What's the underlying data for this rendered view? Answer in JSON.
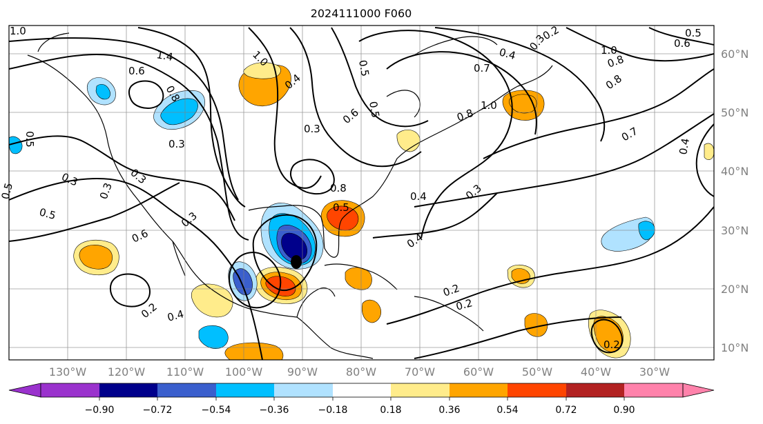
{
  "title": "2024111000 F060",
  "map": {
    "lon_labels": [
      "130°W",
      "120°W",
      "110°W",
      "100°W",
      "90°W",
      "80°W",
      "70°W",
      "60°W",
      "50°W",
      "40°W",
      "30°W"
    ],
    "lat_labels": [
      "60°N",
      "50°N",
      "40°N",
      "30°N",
      "20°N",
      "10°N"
    ],
    "contour_labels": [
      "1.0",
      "1.4",
      "0.6",
      "0.8",
      "0.5",
      "0.3",
      "0.3",
      "0.5",
      "0.3",
      "0.6",
      "0.3",
      "0.5",
      "0.2",
      "0.4",
      "1.0",
      "0.4",
      "0.3",
      "0.5",
      "0.8",
      "0.6",
      "0.5",
      "0.3",
      "0.5",
      "0.4",
      "0.4",
      "0.3",
      "0.2",
      "0.2",
      "0.7",
      "0.4",
      "0.8",
      "1.0",
      "0.8",
      "0.8",
      "0.7",
      "0.3",
      "0.2",
      "1.0",
      "0.6",
      "0.5",
      "0.4",
      "0.2"
    ],
    "colors": {
      "contour": "#000000",
      "grid": "#808080",
      "storm_marker": "#000000"
    }
  },
  "colorbar": {
    "ticks": [
      "−0.90",
      "−0.72",
      "−0.54",
      "−0.36",
      "−0.18",
      "0.18",
      "0.36",
      "0.54",
      "0.72",
      "0.90"
    ],
    "colors": [
      "#9a32cd",
      "#00008b",
      "#3a5fcd",
      "#00bfff",
      "#b0e2ff",
      "#ffffff",
      "#ffec8b",
      "#ffa500",
      "#ff4500",
      "#b22222",
      "#ff82ab"
    ]
  }
}
